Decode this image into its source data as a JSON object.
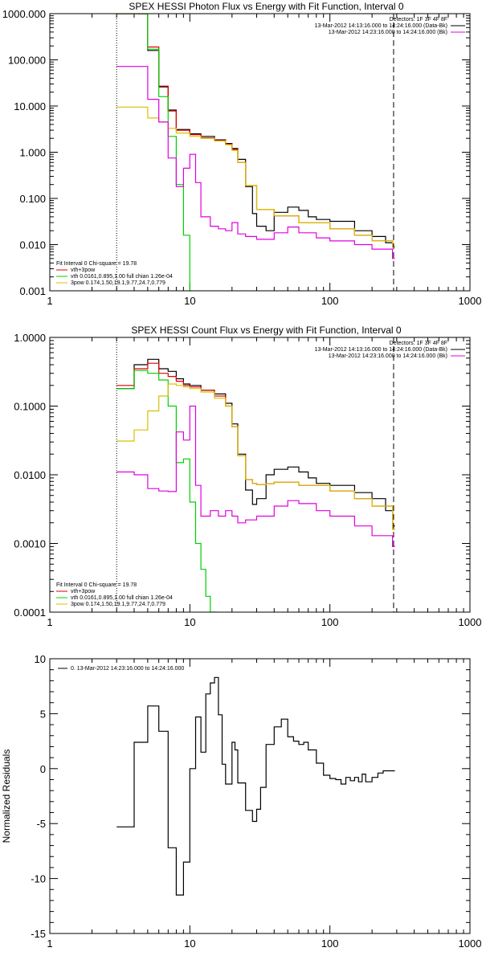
{
  "chart_data": [
    {
      "type": "line",
      "title": "SPEX HESSI Photon Flux vs Energy with Fit Function, Interval 0",
      "xscale": "log",
      "yscale": "log",
      "xlim": [
        1,
        1000
      ],
      "ylim": [
        0.001,
        1000
      ],
      "x_tick_labels": [
        "1",
        "10",
        "100",
        "1000"
      ],
      "y_tick_labels": [
        "0.001",
        "0.010",
        "0.100",
        "1.000",
        "10.000",
        "100.000",
        "1000.000"
      ],
      "legend_top_right": [
        "Detectors: 1F 3F 4F 8F",
        "13-Mar-2012 14:13:16.000 to 14:24:16.000 (Data-Bk)",
        "13-Mar-2012 14:23:16.000 to 14:24:16.000 (Bk)"
      ],
      "legend_bottom_left": {
        "header": "Fit Interval 0   Chi-square = 19.78",
        "entries": [
          "vth+3pow",
          "vth 0.0161,0.895,1.00  full chian 1.26e-04",
          "3pow 0.174,1.50,19.1,9.77,24.7,0.779"
        ]
      },
      "vlines": [
        {
          "x": 3,
          "style": "dotted"
        },
        {
          "x": 285,
          "style": "dashed"
        }
      ],
      "series": [
        {
          "name": "Data-Bk",
          "color": "#000000",
          "x": [
            3,
            4,
            5,
            6,
            7,
            8,
            10,
            12,
            15,
            18,
            20,
            22,
            25,
            28,
            30,
            35,
            40,
            50,
            60,
            70,
            80,
            100,
            150,
            200,
            250,
            280
          ],
          "y": [
            1000,
            1000,
            160,
            26,
            8.2,
            3.1,
            2.5,
            2.2,
            1.85,
            1.55,
            1.2,
            0.7,
            0.18,
            0.047,
            0.025,
            0.02,
            0.05,
            0.065,
            0.055,
            0.04,
            0.035,
            0.032,
            0.02,
            0.015,
            0.011,
            0.009
          ]
        },
        {
          "name": "vth+3pow",
          "color": "#e00000",
          "x": [
            3,
            4,
            5,
            6,
            7,
            8,
            10,
            12,
            15,
            18,
            20,
            22,
            25,
            30,
            40,
            60,
            100,
            150,
            200,
            280
          ],
          "y": [
            1000,
            1000,
            190,
            27,
            7.8,
            3.0,
            2.4,
            2.05,
            1.8,
            1.5,
            1.15,
            0.6,
            0.19,
            0.058,
            0.042,
            0.03,
            0.022,
            0.016,
            0.012,
            0.009
          ]
        },
        {
          "name": "vth",
          "color": "#00d000",
          "x": [
            3,
            4,
            5,
            6,
            7,
            8,
            9,
            10
          ],
          "y": [
            1000,
            1000,
            170,
            16,
            2.2,
            0.2,
            0.016,
            0.001
          ]
        },
        {
          "name": "3pow",
          "color": "#d8c000",
          "x": [
            3,
            4,
            5,
            6,
            7,
            8,
            10,
            12,
            15,
            18,
            20,
            22,
            25,
            30,
            40,
            60,
            100,
            150,
            200,
            280
          ],
          "y": [
            9.5,
            9.5,
            5.5,
            4.5,
            3.3,
            2.6,
            2.2,
            2.0,
            1.75,
            1.45,
            1.1,
            0.6,
            0.19,
            0.058,
            0.042,
            0.03,
            0.022,
            0.016,
            0.012,
            0.009
          ]
        },
        {
          "name": "Bk",
          "color": "#e000e0",
          "x": [
            3,
            4,
            5,
            6,
            7,
            8,
            9,
            10,
            11,
            12,
            14,
            16,
            18,
            20,
            22,
            25,
            30,
            40,
            50,
            60,
            80,
            100,
            150,
            200,
            280
          ],
          "y": [
            72,
            72,
            14,
            4.5,
            0.75,
            0.18,
            0.45,
            0.9,
            0.22,
            0.04,
            0.025,
            0.022,
            0.02,
            0.03,
            0.017,
            0.015,
            0.013,
            0.018,
            0.024,
            0.018,
            0.014,
            0.012,
            0.01,
            0.008,
            0.005
          ]
        }
      ]
    },
    {
      "type": "line",
      "title": "SPEX HESSI Count Flux vs Energy with Fit Function, Interval 0",
      "xscale": "log",
      "yscale": "log",
      "xlim": [
        1,
        1000
      ],
      "ylim": [
        0.0001,
        1
      ],
      "x_tick_labels": [
        "1",
        "10",
        "100",
        "1000"
      ],
      "y_tick_labels": [
        "0.0001",
        "0.0010",
        "0.0100",
        "0.1000",
        "1.0000"
      ],
      "legend_top_right": [
        "Detectors: 1F 3F 4F 8F",
        "13-Mar-2012 14:13:16.000 to 14:24:16.000 (Data-Bk)",
        "13-Mar-2012 14:23:16.000 to 14:24:16.000 (Bk)"
      ],
      "legend_bottom_left": {
        "header": "Fit Interval 0   Chi-square = 19.78",
        "entries": [
          "vth+3pow",
          "vth 0.0161,0.895,1.00  full chian 1.26e-04",
          "3pow 0.174,1.50,19.1,9.77,24.7,0.779"
        ]
      },
      "vlines": [
        {
          "x": 3,
          "style": "dotted"
        },
        {
          "x": 285,
          "style": "dashed"
        }
      ],
      "series": [
        {
          "name": "Data-Bk",
          "color": "#000000",
          "x": [
            3,
            4,
            5,
            6,
            7,
            8,
            9,
            10,
            12,
            15,
            18,
            20,
            22,
            25,
            28,
            30,
            35,
            40,
            50,
            60,
            70,
            80,
            100,
            150,
            200,
            250,
            280
          ],
          "y": [
            0.18,
            0.4,
            0.48,
            0.35,
            0.32,
            0.25,
            0.21,
            0.2,
            0.17,
            0.15,
            0.11,
            0.055,
            0.02,
            0.006,
            0.0037,
            0.0045,
            0.01,
            0.012,
            0.013,
            0.011,
            0.009,
            0.0075,
            0.007,
            0.0055,
            0.0045,
            0.003,
            0.0018
          ]
        },
        {
          "name": "vth+3pow",
          "color": "#e00000",
          "x": [
            3,
            4,
            5,
            6,
            7,
            8,
            9,
            10,
            12,
            15,
            18,
            20,
            22,
            25,
            28,
            30,
            35,
            40,
            60,
            100,
            150,
            200,
            280
          ],
          "y": [
            0.2,
            0.35,
            0.42,
            0.3,
            0.27,
            0.23,
            0.2,
            0.19,
            0.17,
            0.14,
            0.1,
            0.05,
            0.019,
            0.0085,
            0.0075,
            0.0072,
            0.0074,
            0.0078,
            0.007,
            0.0058,
            0.0045,
            0.0035,
            0.0016
          ]
        },
        {
          "name": "vth",
          "color": "#00d000",
          "x": [
            3,
            4,
            5,
            6,
            7,
            8,
            9,
            10,
            11,
            12,
            13,
            14,
            15
          ],
          "y": [
            0.18,
            0.33,
            0.3,
            0.24,
            0.1,
            0.015,
            0.017,
            0.004,
            0.001,
            0.00042,
            0.00017,
            0.0001,
            0.0001
          ]
        },
        {
          "name": "3pow",
          "color": "#d8c000",
          "x": [
            3,
            4,
            5,
            6,
            7,
            8,
            9,
            10,
            12,
            15,
            18,
            20,
            22,
            25,
            28,
            30,
            35,
            40,
            60,
            100,
            150,
            200,
            280
          ],
          "y": [
            0.031,
            0.045,
            0.085,
            0.14,
            0.21,
            0.2,
            0.19,
            0.18,
            0.16,
            0.13,
            0.1,
            0.05,
            0.019,
            0.0085,
            0.0075,
            0.0072,
            0.0074,
            0.0078,
            0.007,
            0.0058,
            0.0045,
            0.0035,
            0.0016
          ]
        },
        {
          "name": "Bk",
          "color": "#e000e0",
          "x": [
            3,
            4,
            5,
            6,
            7,
            8,
            9,
            10,
            11,
            12,
            14,
            16,
            18,
            20,
            22,
            25,
            30,
            40,
            50,
            60,
            80,
            100,
            150,
            200,
            280
          ],
          "y": [
            0.011,
            0.01,
            0.0063,
            0.0058,
            0.0057,
            0.042,
            0.032,
            0.1,
            0.007,
            0.0025,
            0.003,
            0.0025,
            0.003,
            0.0025,
            0.002,
            0.0022,
            0.0025,
            0.0035,
            0.0042,
            0.0038,
            0.003,
            0.0025,
            0.0018,
            0.0013,
            0.0009
          ]
        }
      ]
    },
    {
      "type": "line",
      "xscale": "log",
      "xlim": [
        1,
        1000
      ],
      "ylim": [
        -15,
        10
      ],
      "ylabel": "Normalized Residuals",
      "x_tick_labels": [
        "1",
        "10",
        "100",
        "1000"
      ],
      "y_tick_labels": [
        "-15",
        "-10",
        "-5",
        "0",
        "5",
        "10"
      ],
      "legend_top_left": "0. 13-Mar-2012 14:23:16.000 to 14:24:16.000",
      "series": [
        {
          "name": "0. 13-Mar-2012 14:23:16.000 to 14:24:16.000",
          "color": "#000000",
          "x": [
            3,
            4,
            5,
            6,
            7,
            8,
            9,
            10,
            11,
            12,
            13,
            14,
            15,
            16,
            17,
            18,
            20,
            21,
            22,
            25,
            28,
            30,
            32,
            35,
            40,
            45,
            50,
            55,
            60,
            65,
            70,
            80,
            90,
            100,
            110,
            120,
            130,
            140,
            150,
            160,
            170,
            180,
            200,
            220,
            240,
            260,
            280
          ],
          "y": [
            -5.3,
            2.4,
            5.7,
            3.4,
            -7.2,
            -11.5,
            -8.5,
            0.0,
            4.7,
            1.5,
            6.8,
            7.8,
            8.3,
            4.9,
            0.4,
            -1.4,
            2.4,
            1.7,
            -1.3,
            -3.8,
            -4.8,
            -3.7,
            -1.7,
            2.2,
            3.8,
            4.5,
            2.9,
            2.5,
            2.2,
            2.4,
            1.7,
            0.5,
            -0.6,
            -0.9,
            -1.0,
            -1.4,
            -0.8,
            -1.1,
            -0.8,
            -1.2,
            -0.5,
            -1.2,
            -0.8,
            -0.4,
            -0.2,
            -0.2,
            -0.2
          ]
        }
      ]
    }
  ]
}
